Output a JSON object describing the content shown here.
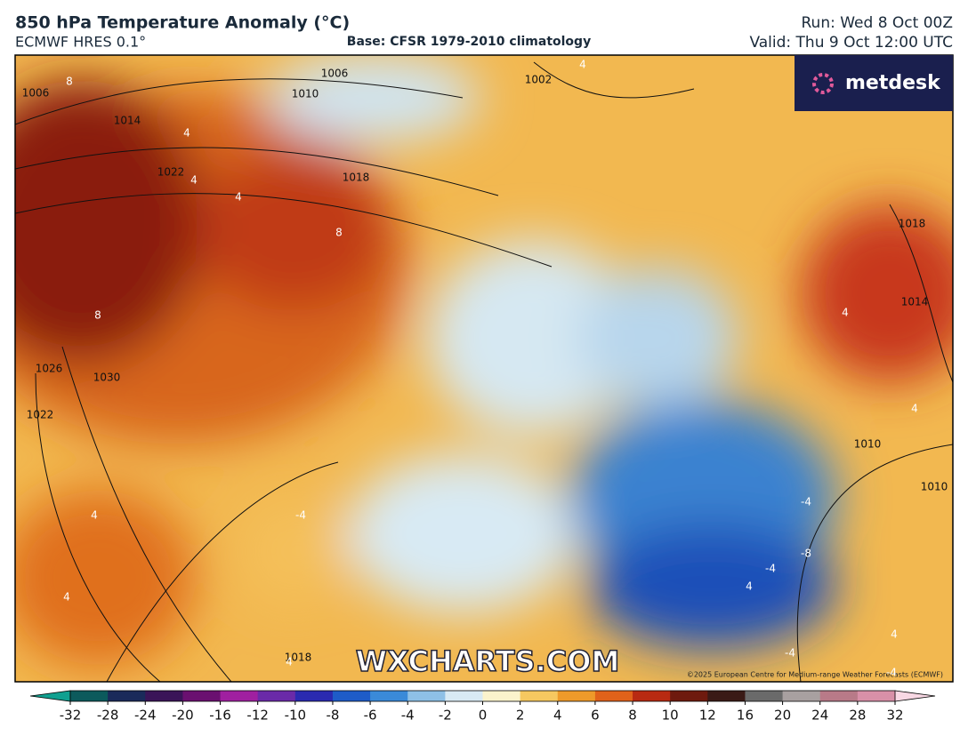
{
  "header": {
    "title": "850 hPa Temperature Anomaly (°C)",
    "model": "ECMWF HRES 0.1°",
    "base": "Base: CFSR 1979-2010 climatology",
    "run": "Run: Wed 8 Oct 00Z",
    "valid": "Valid: Thu 9 Oct 12:00 UTC"
  },
  "map": {
    "logo": "metdesk",
    "watermark": "WXCHARTS.COM",
    "copyright": "©2025 European Centre for Medium-range Weather Forecasts (ECMWF)",
    "isobar_labels": [
      "1006",
      "1006",
      "1010",
      "1002",
      "1014",
      "1022",
      "1018",
      "1018",
      "1014",
      "1026",
      "1030",
      "1022",
      "1010",
      "1010",
      "1018"
    ],
    "anomaly_labels": [
      "8",
      "4",
      "4",
      "4",
      "8",
      "8",
      "4",
      "4",
      "4",
      "-4",
      "4",
      "-4",
      "-4",
      "-8",
      "4",
      "4",
      "-4",
      "-4",
      "4",
      "4"
    ]
  },
  "colorbar": {
    "ticks": [
      -32,
      -28,
      -24,
      -20,
      -16,
      -12,
      -10,
      -8,
      -6,
      -4,
      -2,
      0,
      2,
      4,
      6,
      8,
      10,
      12,
      16,
      20,
      24,
      28,
      32
    ],
    "colors": [
      "#0c5a5c",
      "#1a2a5a",
      "#3a1458",
      "#6a1070",
      "#a020a0",
      "#6a2aa8",
      "#2a2ab0",
      "#1e5cc8",
      "#3a8ad8",
      "#8ec0e6",
      "#d8eaf4",
      "#fbf3cc",
      "#f6c860",
      "#ee9a2a",
      "#e0621a",
      "#b82a12",
      "#6e1a0e",
      "#3a1a16",
      "#6a6a6a",
      "#a8a0a0",
      "#b87a88",
      "#d890a8",
      "#f0c0d0"
    ],
    "low_color": "#10a090",
    "high_color": "#f8d8e4"
  }
}
